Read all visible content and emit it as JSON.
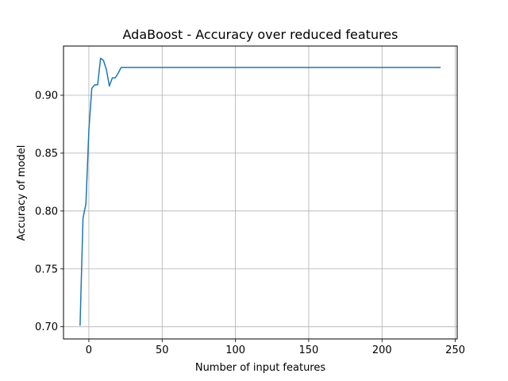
{
  "chart_data": {
    "type": "line",
    "title": "AdaBoost - Accuracy over reduced features",
    "xlabel": "Number of input features",
    "ylabel": "Accuracy of model",
    "xlim": [
      -17.3,
      251.3
    ],
    "ylim": [
      0.6895,
      0.9425
    ],
    "xticks": [
      0,
      50,
      100,
      150,
      200,
      250
    ],
    "xtick_labels": [
      "0",
      "50",
      "100",
      "150",
      "200",
      "250"
    ],
    "yticks": [
      0.7,
      0.75,
      0.8,
      0.85,
      0.9
    ],
    "ytick_labels": [
      "0.70",
      "0.75",
      "0.80",
      "0.85",
      "0.90"
    ],
    "grid": true,
    "series": [
      {
        "color": "#1f77b4",
        "x": [
          -6,
          -4,
          -2,
          0,
          2,
          4,
          6,
          8,
          10,
          12,
          14,
          16,
          18,
          20,
          22,
          24,
          30,
          40,
          60,
          100,
          150,
          200,
          240
        ],
        "y": [
          0.701,
          0.794,
          0.806,
          0.87,
          0.906,
          0.909,
          0.909,
          0.932,
          0.93,
          0.922,
          0.908,
          0.915,
          0.915,
          0.919,
          0.924,
          0.924,
          0.924,
          0.924,
          0.924,
          0.924,
          0.924,
          0.924,
          0.924
        ]
      }
    ]
  }
}
